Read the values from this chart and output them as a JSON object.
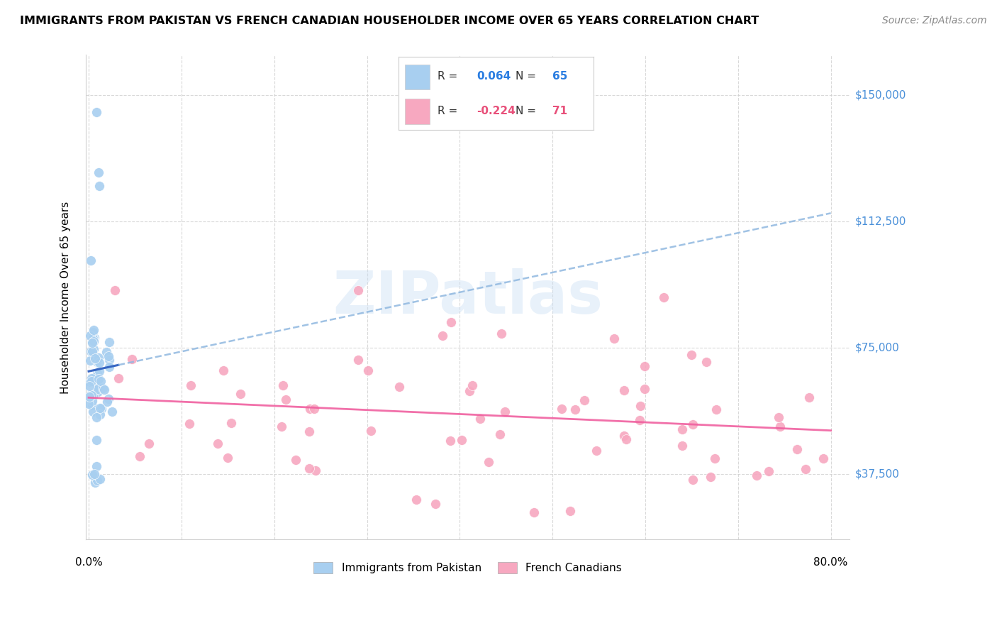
{
  "title": "IMMIGRANTS FROM PAKISTAN VS FRENCH CANADIAN HOUSEHOLDER INCOME OVER 65 YEARS CORRELATION CHART",
  "source": "Source: ZipAtlas.com",
  "ylabel": "Householder Income Over 65 years",
  "ytick_labels": [
    "$37,500",
    "$75,000",
    "$112,500",
    "$150,000"
  ],
  "ytick_values": [
    37500,
    75000,
    112500,
    150000
  ],
  "ylim": [
    18000,
    162000
  ],
  "xlim": [
    -0.003,
    0.82
  ],
  "series1_name": "Immigrants from Pakistan",
  "series2_name": "French Canadians",
  "series1_color": "#a8cff0",
  "series2_color": "#f7a8c0",
  "series1_line_color_solid": "#3060c0",
  "series1_line_color_dashed": "#90b8e0",
  "series2_line_color": "#f060a0",
  "R1": 0.064,
  "N1": 65,
  "R2": -0.224,
  "N2": 71,
  "watermark": "ZIPatlas",
  "background_color": "#ffffff",
  "grid_color": "#d0d0d0",
  "title_fontsize": 11.5,
  "source_fontsize": 10,
  "ylabel_fontsize": 11,
  "ytick_fontsize": 11,
  "xtick_fontsize": 11,
  "legend_fontsize": 11,
  "watermark_fontsize": 60,
  "watermark_color": "#cce0f5",
  "watermark_alpha": 0.45
}
